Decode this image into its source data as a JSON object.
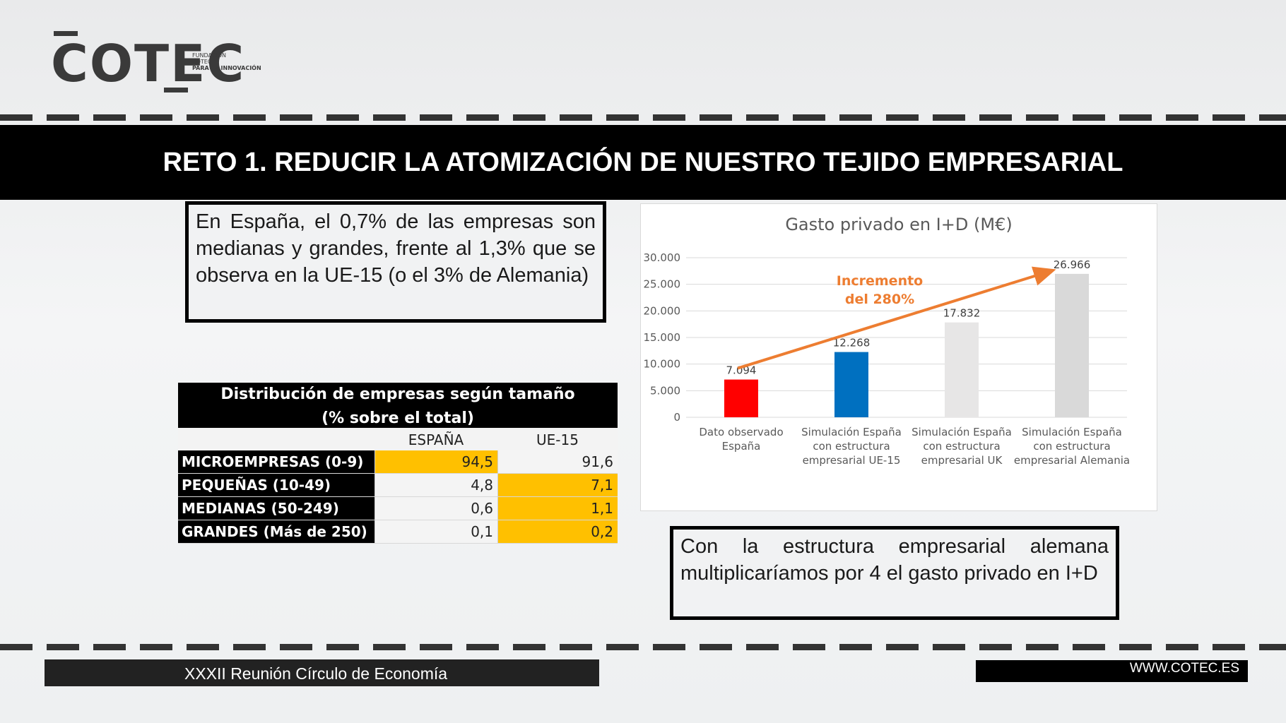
{
  "logo": {
    "wordmark": "COTEC",
    "subtitle": [
      "FUNDACIÓN",
      "COTEC",
      "PARA LA INNOVACIÓN"
    ]
  },
  "header": {
    "title": "RETO 1. REDUCIR LA ATOMIZACIÓN DE NUESTRO TEJIDO EMPRESARIAL"
  },
  "box1": {
    "text": "En España, el 0,7% de las empresas son medianas y grandes, frente al 1,3% que se observa en la UE-15 (o el 3% de Alemania)"
  },
  "box2": {
    "text": "Con la estructura empresarial alemana multiplicaríamos por 4 el gasto privado en I+D"
  },
  "table": {
    "title_line1": "Distribución de empresas según tamaño",
    "title_line2": "(% sobre el total)",
    "columns": [
      "ESPAÑA",
      "UE-15"
    ],
    "rows": [
      {
        "label": "MICROEMPRESAS (0-9)",
        "espana": "94,5",
        "ue15": "91,6",
        "highlight": "espana"
      },
      {
        "label": "PEQUEÑAS (10-49)",
        "espana": "4,8",
        "ue15": "7,1",
        "highlight": "ue15"
      },
      {
        "label": "MEDIANAS (50-249)",
        "espana": "0,6",
        "ue15": "1,1",
        "highlight": "ue15"
      },
      {
        "label": "GRANDES (Más de 250)",
        "espana": "0,1",
        "ue15": "0,2",
        "highlight": "ue15"
      }
    ],
    "highlight_color": "#ffc000"
  },
  "chart_data": {
    "type": "bar",
    "title": "Gasto privado en I+D (M€)",
    "categories": [
      [
        "Dato observado",
        "España"
      ],
      [
        "Simulación España",
        "con estructura",
        "empresarial UE-15"
      ],
      [
        "Simulación España",
        "con estructura",
        "empresarial UK"
      ],
      [
        "Simulación España",
        "con estructura",
        "empresarial Alemania"
      ]
    ],
    "values": [
      7094,
      12268,
      17832,
      26966
    ],
    "value_labels": [
      "7.094",
      "12.268",
      "17.832",
      "26.966"
    ],
    "colors": [
      "#ff0000",
      "#0070c0",
      "#e7e6e6",
      "#d9d9d9"
    ],
    "ylim": [
      0,
      30000
    ],
    "yticks": [
      0,
      5000,
      10000,
      15000,
      20000,
      25000,
      30000
    ],
    "ytick_labels": [
      "0",
      "5.000",
      "10.000",
      "15.000",
      "20.000",
      "25.000",
      "30.000"
    ],
    "grid": true,
    "annotation": {
      "lines": [
        "Incremento",
        "del 280%"
      ],
      "color": "#ed7d31"
    }
  },
  "footer": {
    "left": "XXXII Reunión Círculo de Economía",
    "right": "WWW.COTEC.ES"
  }
}
